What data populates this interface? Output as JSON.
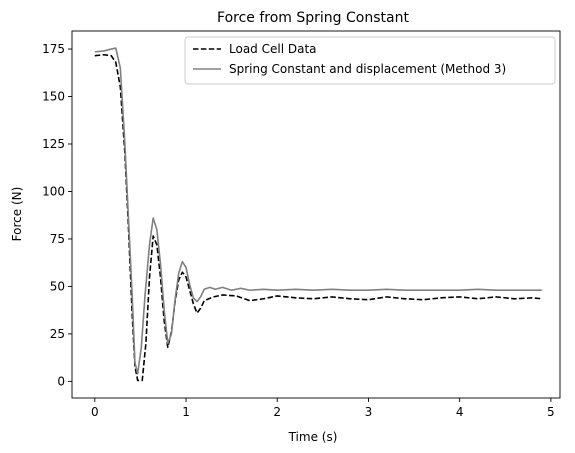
{
  "chart_data": {
    "type": "line",
    "title": "Force from Spring Constant",
    "xlabel": "Time (s)",
    "ylabel": "Force (N)",
    "xlim": [
      -0.25,
      5.1
    ],
    "ylim": [
      -8.75,
      184.5
    ],
    "x_ticks": [
      0,
      1,
      2,
      3,
      4,
      5
    ],
    "x_tick_labels": [
      "0",
      "1",
      "2",
      "3",
      "4",
      "5"
    ],
    "y_ticks": [
      0,
      25,
      50,
      75,
      100,
      125,
      150,
      175
    ],
    "y_tick_labels": [
      "0",
      "25",
      "50",
      "75",
      "100",
      "125",
      "150",
      "175"
    ],
    "grid": false,
    "legend_position": "upper right",
    "series": [
      {
        "name": "Load Cell Data",
        "color": "#000000",
        "dash": "dashed",
        "x": [
          0.0,
          0.1,
          0.18,
          0.23,
          0.28,
          0.33,
          0.37,
          0.41,
          0.44,
          0.47,
          0.52,
          0.56,
          0.6,
          0.64,
          0.68,
          0.72,
          0.76,
          0.8,
          0.84,
          0.88,
          0.92,
          0.96,
          1.0,
          1.04,
          1.08,
          1.12,
          1.16,
          1.2,
          1.3,
          1.4,
          1.55,
          1.7,
          1.85,
          2.0,
          2.2,
          2.4,
          2.6,
          2.8,
          3.0,
          3.2,
          3.4,
          3.6,
          3.8,
          4.0,
          4.2,
          4.4,
          4.6,
          4.8,
          4.9
        ],
        "y": [
          171.5,
          172.0,
          171.5,
          168.0,
          155.0,
          120.0,
          80.0,
          35.0,
          8.0,
          0.5,
          0.5,
          20.0,
          55.0,
          76.5,
          72.0,
          55.0,
          32.0,
          18.0,
          26.0,
          42.0,
          53.5,
          57.5,
          55.0,
          48.0,
          41.0,
          36.0,
          38.5,
          42.5,
          44.5,
          45.5,
          45.0,
          42.5,
          43.5,
          45.0,
          44.0,
          43.5,
          44.5,
          43.5,
          43.0,
          44.5,
          43.5,
          43.0,
          44.0,
          44.5,
          43.5,
          44.5,
          43.5,
          44.0,
          43.5
        ]
      },
      {
        "name": "Spring Constant and displacement (Method 3)",
        "color": "#808080",
        "dash": "solid",
        "x": [
          0.0,
          0.1,
          0.18,
          0.23,
          0.28,
          0.33,
          0.37,
          0.41,
          0.44,
          0.47,
          0.51,
          0.55,
          0.6,
          0.64,
          0.68,
          0.72,
          0.76,
          0.8,
          0.84,
          0.88,
          0.92,
          0.96,
          1.0,
          1.04,
          1.08,
          1.12,
          1.16,
          1.2,
          1.26,
          1.32,
          1.4,
          1.5,
          1.6,
          1.7,
          1.85,
          2.0,
          2.2,
          2.4,
          2.6,
          2.8,
          3.0,
          3.2,
          3.4,
          3.6,
          3.8,
          4.0,
          4.2,
          4.4,
          4.6,
          4.8,
          4.9
        ],
        "y": [
          173.5,
          174.0,
          175.0,
          175.5,
          165.0,
          125.0,
          85.0,
          45.0,
          10.0,
          4.0,
          18.0,
          45.0,
          72.0,
          86.0,
          80.0,
          62.0,
          38.0,
          20.0,
          25.0,
          43.0,
          57.0,
          63.0,
          60.0,
          51.0,
          44.0,
          42.0,
          44.5,
          48.5,
          49.5,
          48.5,
          49.5,
          48.0,
          49.0,
          48.0,
          48.5,
          48.0,
          48.5,
          48.0,
          48.5,
          48.0,
          48.0,
          48.5,
          48.0,
          48.0,
          48.0,
          48.0,
          48.5,
          48.0,
          48.0,
          48.0,
          48.0
        ]
      }
    ]
  }
}
